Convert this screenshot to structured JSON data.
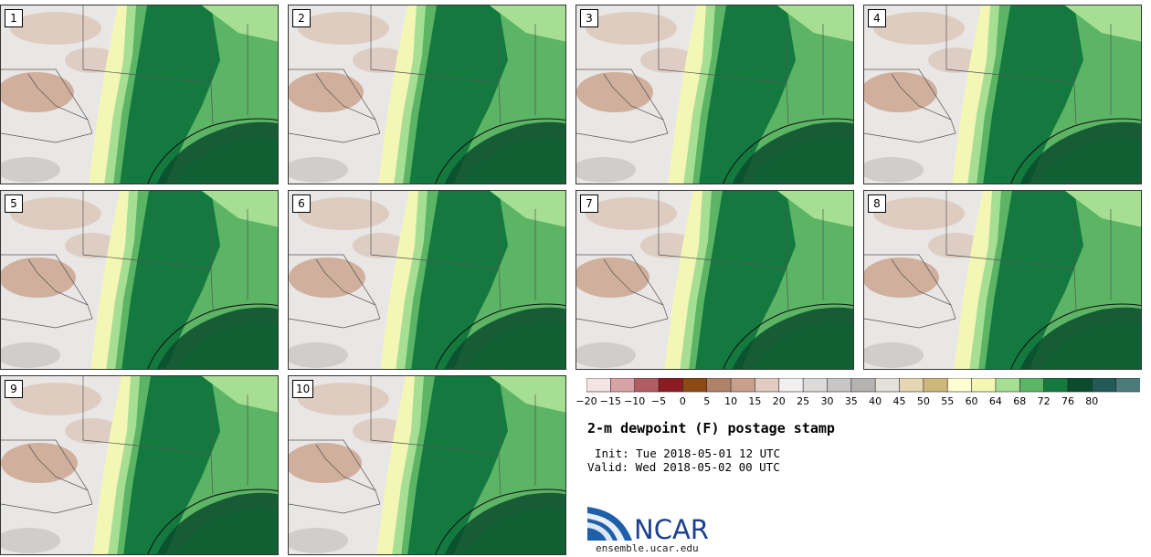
{
  "title": "2-m dewpoint (F) postage stamp",
  "init_line": "Init: Tue 2018-05-01 12 UTC",
  "valid_line": "Valid: Wed 2018-05-02 00 UTC",
  "logo_text": "NCAR",
  "site": "ensemble.ucar.edu",
  "members": [
    "1",
    "2",
    "3",
    "4",
    "5",
    "6",
    "7",
    "8",
    "9",
    "10"
  ],
  "colorbar": {
    "ticks": [
      "−20",
      "−15",
      "−10",
      "−5",
      "0",
      "5",
      "10",
      "15",
      "20",
      "25",
      "30",
      "35",
      "40",
      "45",
      "50",
      "55",
      "60",
      "64",
      "68",
      "72",
      "76",
      "80"
    ],
    "colors": [
      "#f6e3e3",
      "#d9a3a6",
      "#b15d63",
      "#8b1c22",
      "#8b4a14",
      "#b1826a",
      "#c8a08c",
      "#e2ccc1",
      "#f2f0ef",
      "#dddbda",
      "#c9c7c6",
      "#b5b3b2",
      "#e4e1db",
      "#e6d7b2",
      "#cdb77b",
      "#ffffd1",
      "#f4f7b3",
      "#a6df94",
      "#5cb465",
      "#13793f",
      "#0a4c2b",
      "#215a56",
      "#4b7c79"
    ]
  },
  "colors": {
    "dry_light": "#e9e7e6",
    "brown": "#cba48e",
    "yellow": "#f4f7b3",
    "green_light": "#a6df94",
    "green_mid": "#5cb465",
    "green_dark": "#13793f",
    "green_darkest": "#0a4c2b"
  }
}
